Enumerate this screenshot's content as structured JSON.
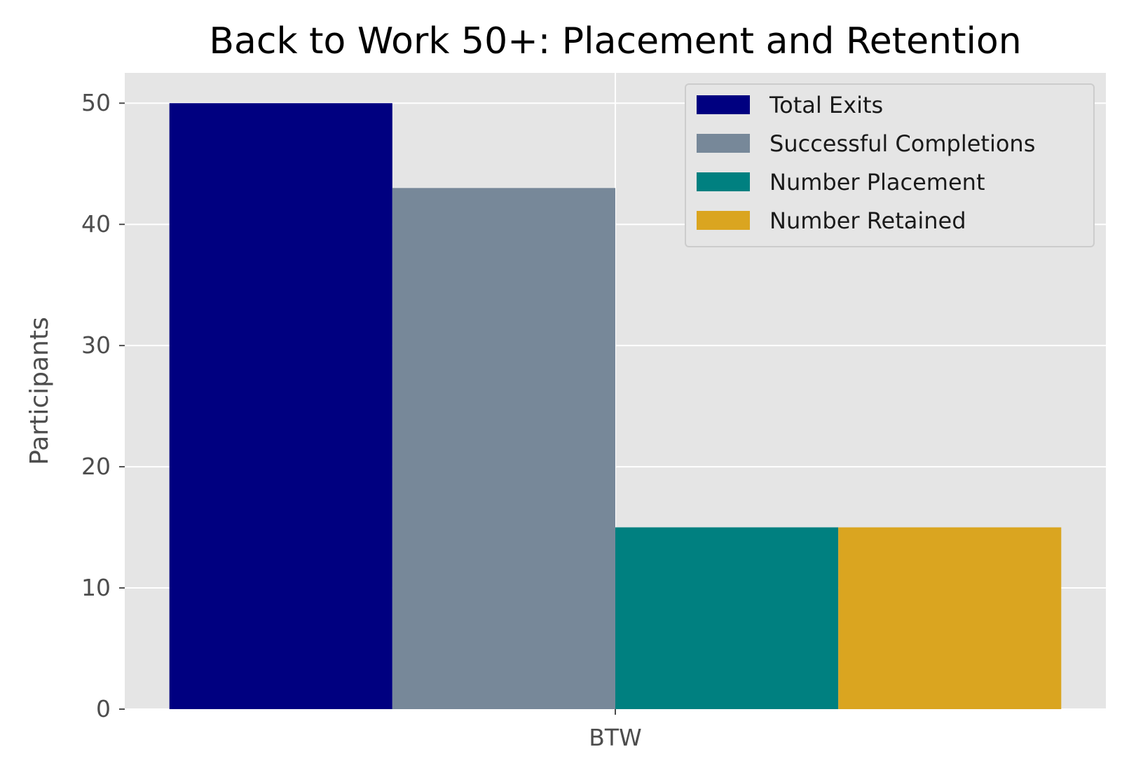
{
  "chart_data": {
    "type": "bar",
    "title": "Back to Work 50+: Placement and Retention",
    "xlabel": "",
    "ylabel": "Participants",
    "categories": [
      "BTW"
    ],
    "series": [
      {
        "name": "Total Exits",
        "values": [
          50
        ],
        "color": "#000080"
      },
      {
        "name": "Successful Completions",
        "values": [
          43
        ],
        "color": "#778899"
      },
      {
        "name": "Number Placement",
        "values": [
          15
        ],
        "color": "#008080"
      },
      {
        "name": "Number Retained",
        "values": [
          15
        ],
        "color": "#DAA520"
      }
    ],
    "ylim": [
      0,
      52.5
    ],
    "yticks": [
      0,
      10,
      20,
      30,
      40,
      50
    ],
    "grid": true,
    "legend_position": "top-right",
    "background": "#E5E5E5"
  }
}
